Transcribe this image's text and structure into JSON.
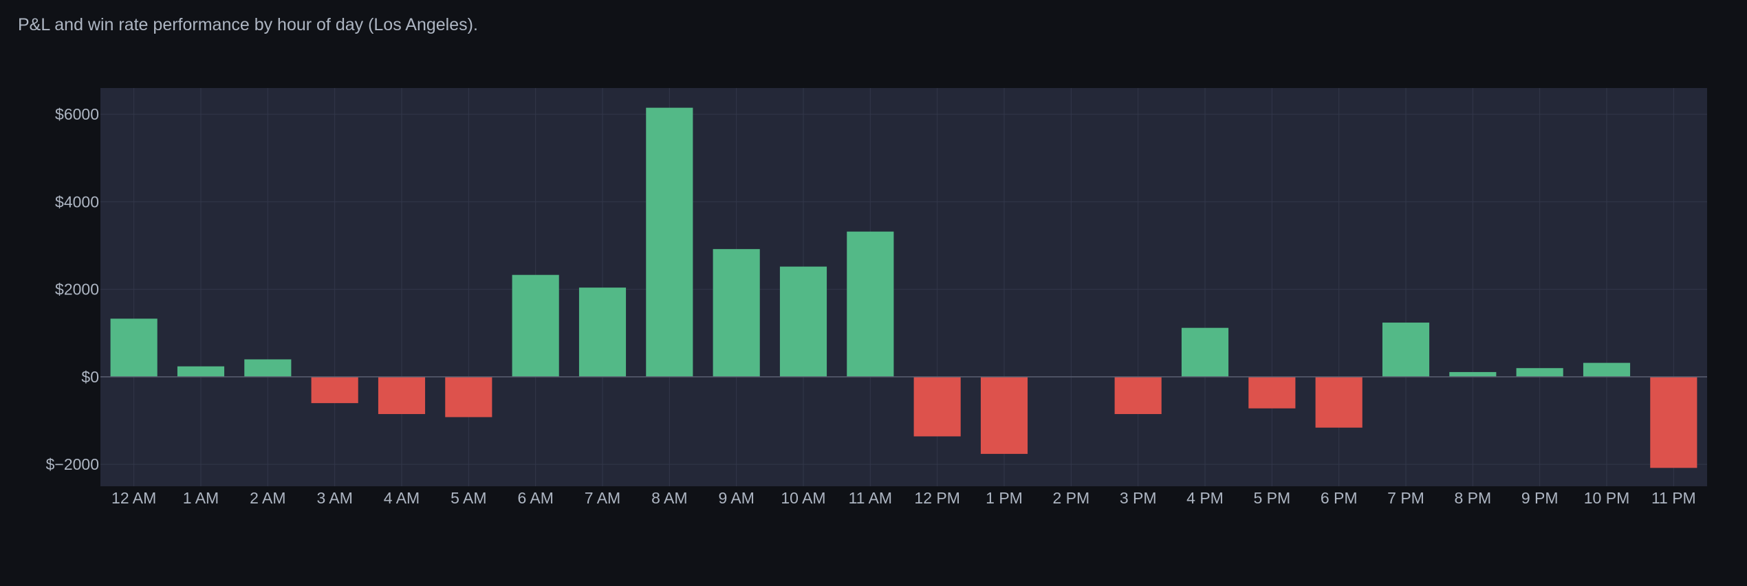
{
  "caption": "P&L and win rate performance by hour of day (Los Angeles).",
  "colors": {
    "page_background": "#0f1116",
    "plot_background": "#242838",
    "grid": "#32374a",
    "zero_line": "#5a5f70",
    "positive": "#53b987",
    "negative": "#dd524c",
    "text": "#aeb6c3"
  },
  "chart_data": {
    "type": "bar",
    "title": "",
    "xlabel": "",
    "ylabel": "",
    "ylim": [
      -2500,
      6600
    ],
    "yticks": [
      6000,
      4000,
      2000,
      0,
      -2000
    ],
    "ytick_labels": [
      "$6000",
      "$4000",
      "$2000",
      "$0",
      "$−2000"
    ],
    "grid": true,
    "categories": [
      "12 AM",
      "1 AM",
      "2 AM",
      "3 AM",
      "4 AM",
      "5 AM",
      "6 AM",
      "7 AM",
      "8 AM",
      "9 AM",
      "10 AM",
      "11 AM",
      "12 PM",
      "1 PM",
      "2 PM",
      "3 PM",
      "4 PM",
      "5 PM",
      "6 PM",
      "7 PM",
      "8 PM",
      "9 PM",
      "10 PM",
      "11 PM"
    ],
    "values": [
      1330,
      240,
      400,
      -600,
      -850,
      -920,
      2330,
      2040,
      6150,
      2920,
      2520,
      3320,
      -1360,
      -1760,
      0,
      -850,
      1120,
      -720,
      -1160,
      1240,
      110,
      200,
      320,
      -2080
    ]
  }
}
